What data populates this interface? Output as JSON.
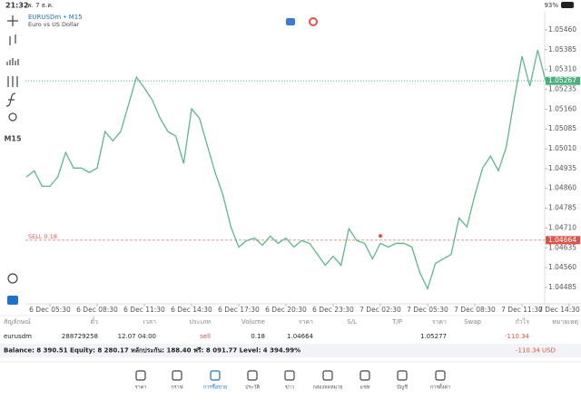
{
  "status_bar": {
    "time": "21:32",
    "date": "พ. 7 ธ.ค.",
    "battery": "93%"
  },
  "toolbar": {
    "timeframe": "M15"
  },
  "chart_data": {
    "type": "line",
    "title": "EURUSDm • M15",
    "subtitle": "Euro vs US Dollar",
    "color": "#5cb88a",
    "values": [
      1.04903,
      1.04927,
      1.04868,
      1.04868,
      1.04903,
      1.04996,
      1.04937,
      1.04937,
      1.0492,
      1.04937,
      1.05075,
      1.0504,
      1.05075,
      1.05178,
      1.05281,
      1.0524,
      1.05195,
      1.05126,
      1.05075,
      1.05058,
      1.04954,
      1.05161,
      1.05126,
      1.05023,
      1.0492,
      1.04834,
      1.04714,
      1.04638,
      1.04662,
      1.04672,
      1.04645,
      1.04679,
      1.04652,
      1.04672,
      1.04638,
      1.04662,
      1.04652,
      1.0461,
      1.04569,
      1.04603,
      1.04569,
      1.04707,
      1.04662,
      1.04652,
      1.04593,
      1.04652,
      1.04638,
      1.04652,
      1.04652,
      1.04638,
      1.04542,
      1.0448,
      1.04576,
      1.04593,
      1.0461,
      1.04748,
      1.04714,
      1.04834,
      1.04937,
      1.04982,
      1.04927,
      1.05016,
      1.05195,
      1.0536,
      1.05247,
      1.05384,
      1.05267
    ],
    "xlim": [
      0,
      69
    ],
    "xticks": [
      {
        "value": 3,
        "label": "6 Dec 05:30"
      },
      {
        "value": 9,
        "label": "6 Dec 08:30"
      },
      {
        "value": 15,
        "label": "6 Dec 11:30"
      },
      {
        "value": 21,
        "label": "6 Dec 14:30"
      },
      {
        "value": 27,
        "label": "6 Dec 17:30"
      },
      {
        "value": 33,
        "label": "6 Dec 20:30"
      },
      {
        "value": 39,
        "label": "6 Dec 23:30"
      },
      {
        "value": 45,
        "label": "7 Dec 02:30"
      },
      {
        "value": 51,
        "label": "7 Dec 05:30"
      },
      {
        "value": 57,
        "label": "7 Dec 08:30"
      },
      {
        "value": 63,
        "label": "7 Dec 11:30"
      },
      {
        "value": 69,
        "label": "7 Dec 14:30"
      }
    ],
    "ylim": [
      1.04423,
      1.05532
    ],
    "yticks": [
      {
        "value": 1.0546,
        "label": "1.05460"
      },
      {
        "value": 1.05385,
        "label": "1.05385"
      },
      {
        "value": 1.0531,
        "label": "1.05310"
      },
      {
        "value": 1.05235,
        "label": "1.05235"
      },
      {
        "value": 1.0516,
        "label": "1.05160"
      },
      {
        "value": 1.05085,
        "label": "1.05085"
      },
      {
        "value": 1.0501,
        "label": "1.05010"
      },
      {
        "value": 1.04935,
        "label": "1.04935"
      },
      {
        "value": 1.0486,
        "label": "1.04860"
      },
      {
        "value": 1.04785,
        "label": "1.04785"
      },
      {
        "value": 1.0471,
        "label": "1.04710"
      },
      {
        "value": 1.04635,
        "label": "1.04635"
      },
      {
        "value": 1.0456,
        "label": "1.04560"
      },
      {
        "value": 1.04485,
        "label": "1.04485"
      }
    ],
    "current_price": {
      "value": 1.05267,
      "label": "1.05267",
      "color": "#4caf7d"
    },
    "order_line": {
      "value": 1.04664,
      "label": "1.04664",
      "text": "SELL 0.18",
      "color": "#e0534a"
    },
    "trade_marker": {
      "x": 45,
      "y": 1.0468,
      "color": "#e0534a"
    }
  },
  "positions": {
    "headers": [
      "สัญลักษณ์",
      "ตั๋ว",
      "เวลา",
      "ประเภท",
      "Volume",
      "ราคา",
      "S/L",
      "T/P",
      "ราคา",
      "Swap",
      "กำไร",
      "หมายเหตุ"
    ],
    "rows": [
      {
        "symbol": "eurusdm",
        "ticket": "288729258",
        "time": "12.07 04:00",
        "type": "sell",
        "volume": "0.18",
        "price_open": "1.04664",
        "price_current": "1.05277",
        "profit": "-110.34"
      }
    ]
  },
  "account": {
    "summary": "Balance: 8 390.51  Equity: 8 280.17  หลักประกัน: 188.40  ฟรี: 8 091.77  Level: 4 394.99%",
    "profit": "-110.34",
    "currency": "USD"
  },
  "nav": [
    "ราคา",
    "กราฟ",
    "การซื้อขาย",
    "ประวัติ",
    "ข่าว",
    "กล่องจดหมาย",
    "แชท",
    "บัญชี",
    "การตั้งค่า"
  ]
}
